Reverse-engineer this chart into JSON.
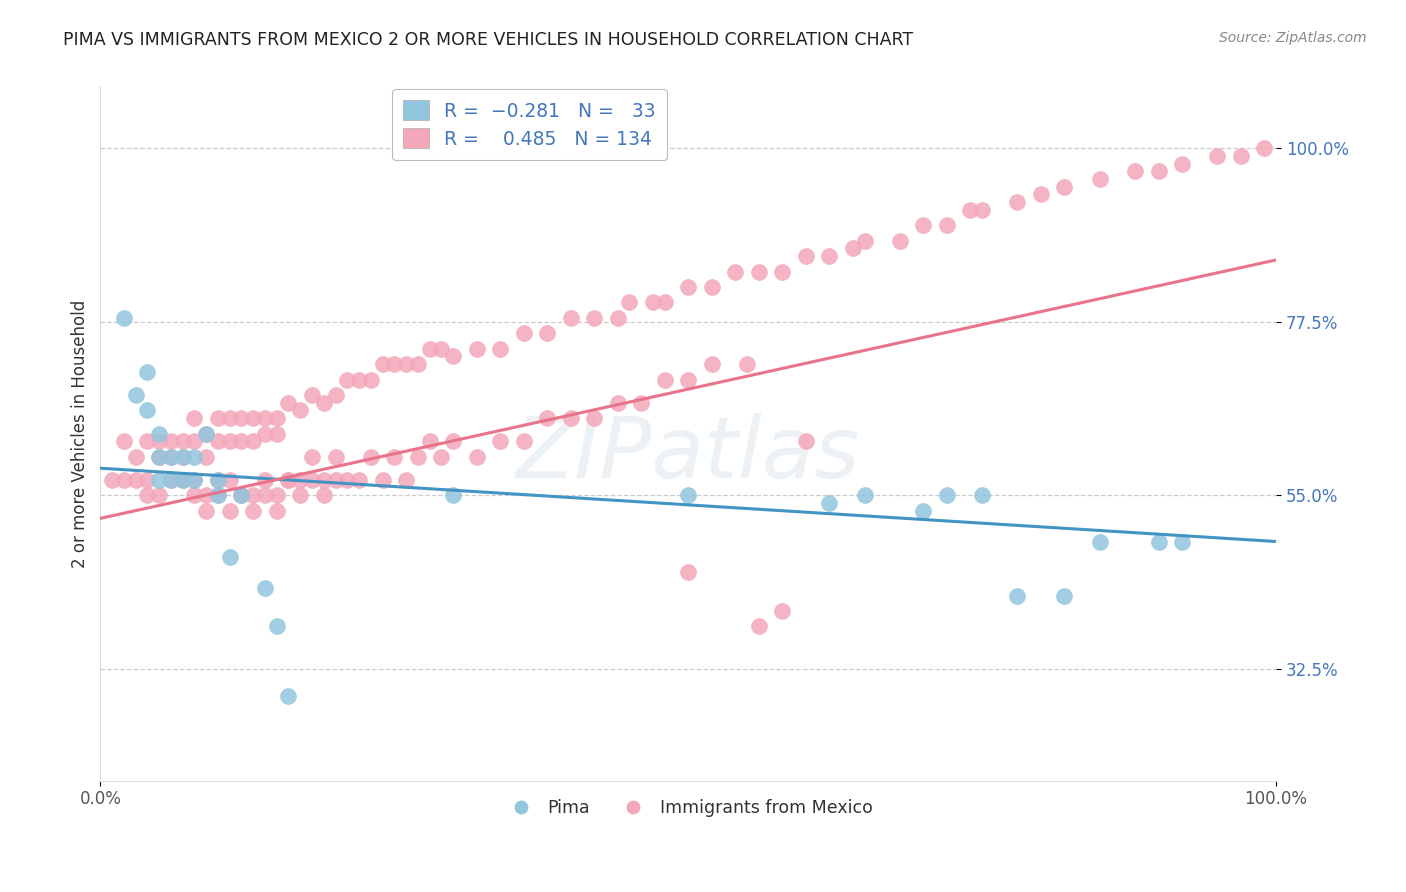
{
  "title": "PIMA VS IMMIGRANTS FROM MEXICO 2 OR MORE VEHICLES IN HOUSEHOLD CORRELATION CHART",
  "source": "Source: ZipAtlas.com",
  "ylabel": "2 or more Vehicles in Household",
  "ytick_labels": [
    "32.5%",
    "55.0%",
    "77.5%",
    "100.0%"
  ],
  "ytick_values": [
    0.325,
    0.55,
    0.775,
    1.0
  ],
  "xlim": [
    0.0,
    1.0
  ],
  "ylim": [
    0.18,
    1.08
  ],
  "blue_color": "#92C5DE",
  "pink_color": "#F4A7B9",
  "blue_line_color": "#4393C3",
  "pink_line_color": "#E8738A",
  "watermark": "ZIPatlas",
  "blue_R": -0.281,
  "blue_N": 33,
  "pink_R": 0.485,
  "pink_N": 134,
  "blue_line_start_y": 0.585,
  "blue_line_end_y": 0.49,
  "pink_line_start_y": 0.52,
  "pink_line_end_y": 0.855,
  "blue_scatter_x": [
    0.02,
    0.03,
    0.04,
    0.04,
    0.05,
    0.05,
    0.05,
    0.06,
    0.06,
    0.07,
    0.07,
    0.08,
    0.08,
    0.09,
    0.1,
    0.1,
    0.11,
    0.12,
    0.14,
    0.15,
    0.16,
    0.3,
    0.5,
    0.62,
    0.65,
    0.7,
    0.72,
    0.75,
    0.78,
    0.82,
    0.85,
    0.9,
    0.92
  ],
  "blue_scatter_y": [
    0.78,
    0.68,
    0.71,
    0.66,
    0.63,
    0.6,
    0.57,
    0.6,
    0.57,
    0.6,
    0.57,
    0.6,
    0.57,
    0.63,
    0.57,
    0.55,
    0.47,
    0.55,
    0.43,
    0.38,
    0.29,
    0.55,
    0.55,
    0.54,
    0.55,
    0.53,
    0.55,
    0.55,
    0.42,
    0.42,
    0.49,
    0.49,
    0.49
  ],
  "pink_scatter_x": [
    0.01,
    0.02,
    0.02,
    0.03,
    0.03,
    0.04,
    0.04,
    0.05,
    0.05,
    0.06,
    0.06,
    0.07,
    0.07,
    0.08,
    0.08,
    0.09,
    0.09,
    0.1,
    0.1,
    0.11,
    0.11,
    0.12,
    0.12,
    0.13,
    0.13,
    0.14,
    0.14,
    0.15,
    0.15,
    0.16,
    0.17,
    0.18,
    0.19,
    0.2,
    0.21,
    0.22,
    0.23,
    0.24,
    0.25,
    0.26,
    0.27,
    0.28,
    0.29,
    0.3,
    0.32,
    0.34,
    0.36,
    0.38,
    0.4,
    0.42,
    0.44,
    0.45,
    0.47,
    0.48,
    0.5,
    0.5,
    0.52,
    0.54,
    0.56,
    0.58,
    0.6,
    0.62,
    0.64,
    0.65,
    0.68,
    0.7,
    0.72,
    0.74,
    0.75,
    0.78,
    0.8,
    0.82,
    0.85,
    0.88,
    0.9,
    0.92,
    0.95,
    0.97,
    0.99,
    0.04,
    0.05,
    0.06,
    0.07,
    0.08,
    0.09,
    0.1,
    0.11,
    0.12,
    0.13,
    0.14,
    0.15,
    0.16,
    0.17,
    0.18,
    0.19,
    0.2,
    0.6,
    0.58,
    0.56,
    0.07,
    0.08,
    0.09,
    0.1,
    0.11,
    0.12,
    0.13,
    0.14,
    0.15,
    0.16,
    0.17,
    0.18,
    0.19,
    0.2,
    0.21,
    0.22,
    0.23,
    0.24,
    0.25,
    0.26,
    0.27,
    0.28,
    0.29,
    0.3,
    0.32,
    0.34,
    0.36,
    0.38,
    0.4,
    0.42,
    0.44,
    0.46,
    0.48,
    0.5,
    0.52,
    0.55
  ],
  "pink_scatter_y": [
    0.57,
    0.62,
    0.57,
    0.6,
    0.57,
    0.62,
    0.57,
    0.62,
    0.6,
    0.62,
    0.6,
    0.62,
    0.6,
    0.65,
    0.62,
    0.63,
    0.6,
    0.65,
    0.62,
    0.65,
    0.62,
    0.65,
    0.62,
    0.65,
    0.62,
    0.65,
    0.63,
    0.65,
    0.63,
    0.67,
    0.66,
    0.68,
    0.67,
    0.68,
    0.7,
    0.7,
    0.7,
    0.72,
    0.72,
    0.72,
    0.72,
    0.74,
    0.74,
    0.73,
    0.74,
    0.74,
    0.76,
    0.76,
    0.78,
    0.78,
    0.78,
    0.8,
    0.8,
    0.8,
    0.82,
    0.45,
    0.82,
    0.84,
    0.84,
    0.84,
    0.86,
    0.86,
    0.87,
    0.88,
    0.88,
    0.9,
    0.9,
    0.92,
    0.92,
    0.93,
    0.94,
    0.95,
    0.96,
    0.97,
    0.97,
    0.98,
    0.99,
    0.99,
    1.0,
    0.55,
    0.55,
    0.57,
    0.57,
    0.57,
    0.55,
    0.57,
    0.57,
    0.55,
    0.55,
    0.57,
    0.55,
    0.57,
    0.57,
    0.6,
    0.57,
    0.6,
    0.62,
    0.4,
    0.38,
    0.57,
    0.55,
    0.53,
    0.55,
    0.53,
    0.55,
    0.53,
    0.55,
    0.53,
    0.57,
    0.55,
    0.57,
    0.55,
    0.57,
    0.57,
    0.57,
    0.6,
    0.57,
    0.6,
    0.57,
    0.6,
    0.62,
    0.6,
    0.62,
    0.6,
    0.62,
    0.62,
    0.65,
    0.65,
    0.65,
    0.67,
    0.67,
    0.7,
    0.7,
    0.72,
    0.72
  ]
}
